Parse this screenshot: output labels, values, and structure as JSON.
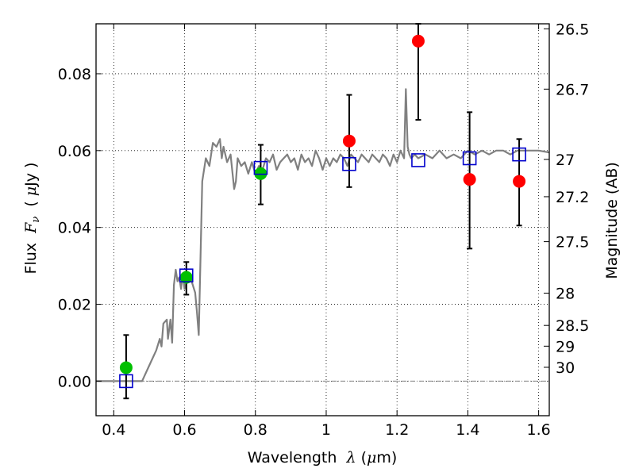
{
  "chart_data": {
    "type": "scatter",
    "xlabel": {
      "prefix": "Wavelength  ",
      "symbol": "λ",
      "units": " (",
      "unit_mu": "μ",
      "unit_rest": "m)"
    },
    "ylabel": {
      "prefix": "Flux  ",
      "symbol": "F",
      "subscript": "ν",
      "units": "  ( ",
      "unit_mu": "μ",
      "unit_rest": "Jy )"
    },
    "y2label": "Magnitude (AB)",
    "xlim": [
      0.35,
      1.63
    ],
    "ylim": [
      -0.009,
      0.093
    ],
    "grid": true,
    "x_ticks": [
      {
        "value": 0.4,
        "label": "0.4"
      },
      {
        "value": 0.6,
        "label": "0.6"
      },
      {
        "value": 0.8,
        "label": "0.8"
      },
      {
        "value": 1.0,
        "label": "1"
      },
      {
        "value": 1.2,
        "label": "1.2"
      },
      {
        "value": 1.4,
        "label": "1.4"
      },
      {
        "value": 1.6,
        "label": "1.6"
      }
    ],
    "y_ticks": [
      {
        "value": 0.0,
        "label": "0.00"
      },
      {
        "value": 0.02,
        "label": "0.02"
      },
      {
        "value": 0.04,
        "label": "0.04"
      },
      {
        "value": 0.06,
        "label": "0.06"
      },
      {
        "value": 0.08,
        "label": "0.08"
      }
    ],
    "y2_ticks": [
      {
        "label": "26.5",
        "flux": 0.0917
      },
      {
        "label": "26.7",
        "flux": 0.076
      },
      {
        "label": "27",
        "flux": 0.0577
      },
      {
        "label": "27.2",
        "flux": 0.048
      },
      {
        "label": "27.5",
        "flux": 0.0363
      },
      {
        "label": "28",
        "flux": 0.0229
      },
      {
        "label": "28.5",
        "flux": 0.0145
      },
      {
        "label": "29",
        "flux": 0.0091
      },
      {
        "label": "30",
        "flux": 0.0036
      }
    ],
    "zero_line": 0.0,
    "spectrum": {
      "color": "#808080",
      "x": [
        0.35,
        0.48,
        0.5,
        0.52,
        0.53,
        0.535,
        0.54,
        0.55,
        0.553,
        0.56,
        0.565,
        0.57,
        0.575,
        0.58,
        0.585,
        0.59,
        0.595,
        0.6,
        0.61,
        0.62,
        0.63,
        0.635,
        0.64,
        0.645,
        0.65,
        0.66,
        0.67,
        0.68,
        0.69,
        0.7,
        0.705,
        0.71,
        0.72,
        0.73,
        0.74,
        0.745,
        0.75,
        0.76,
        0.77,
        0.78,
        0.79,
        0.8,
        0.81,
        0.82,
        0.83,
        0.84,
        0.85,
        0.86,
        0.87,
        0.88,
        0.89,
        0.9,
        0.91,
        0.92,
        0.93,
        0.94,
        0.95,
        0.96,
        0.97,
        0.98,
        0.99,
        1.0,
        1.01,
        1.02,
        1.03,
        1.04,
        1.05,
        1.06,
        1.07,
        1.08,
        1.09,
        1.1,
        1.11,
        1.12,
        1.13,
        1.14,
        1.15,
        1.16,
        1.17,
        1.18,
        1.19,
        1.2,
        1.21,
        1.22,
        1.225,
        1.23,
        1.235,
        1.24,
        1.25,
        1.26,
        1.28,
        1.3,
        1.32,
        1.34,
        1.36,
        1.38,
        1.4,
        1.42,
        1.44,
        1.46,
        1.48,
        1.5,
        1.52,
        1.54,
        1.56,
        1.58,
        1.6,
        1.63
      ],
      "y": [
        0.0,
        0.0,
        0.004,
        0.008,
        0.011,
        0.009,
        0.015,
        0.016,
        0.011,
        0.016,
        0.01,
        0.025,
        0.029,
        0.026,
        0.027,
        0.024,
        0.028,
        0.024,
        0.027,
        0.026,
        0.023,
        0.018,
        0.012,
        0.032,
        0.052,
        0.058,
        0.056,
        0.062,
        0.061,
        0.063,
        0.058,
        0.061,
        0.057,
        0.059,
        0.05,
        0.052,
        0.058,
        0.056,
        0.057,
        0.054,
        0.057,
        0.054,
        0.056,
        0.055,
        0.058,
        0.057,
        0.059,
        0.055,
        0.057,
        0.058,
        0.059,
        0.057,
        0.058,
        0.055,
        0.059,
        0.057,
        0.058,
        0.056,
        0.06,
        0.058,
        0.055,
        0.058,
        0.056,
        0.058,
        0.057,
        0.059,
        0.058,
        0.056,
        0.059,
        0.058,
        0.057,
        0.059,
        0.058,
        0.057,
        0.059,
        0.058,
        0.057,
        0.059,
        0.058,
        0.056,
        0.059,
        0.057,
        0.06,
        0.058,
        0.076,
        0.061,
        0.059,
        0.058,
        0.059,
        0.058,
        0.059,
        0.058,
        0.06,
        0.058,
        0.059,
        0.058,
        0.06,
        0.059,
        0.06,
        0.059,
        0.06,
        0.06,
        0.059,
        0.06,
        0.06,
        0.06,
        0.06,
        0.0595
      ]
    },
    "errorbars": [
      {
        "x": 0.435,
        "low": -0.0045,
        "high": 0.012
      },
      {
        "x": 0.605,
        "low": 0.0225,
        "high": 0.031
      },
      {
        "x": 0.815,
        "low": 0.046,
        "high": 0.0615
      },
      {
        "x": 1.065,
        "low": 0.0505,
        "high": 0.0745
      },
      {
        "x": 1.26,
        "low": 0.068,
        "high": 0.093
      },
      {
        "x": 1.405,
        "low": 0.0345,
        "high": 0.07
      },
      {
        "x": 1.545,
        "low": 0.0405,
        "high": 0.063
      }
    ],
    "series": [
      {
        "marker": "circle",
        "color": "#00c000",
        "x": [
          0.435,
          0.605,
          0.815
        ],
        "values": [
          0.0035,
          0.027,
          0.054
        ]
      },
      {
        "marker": "circle",
        "color": "#ff0000",
        "x": [
          1.065,
          1.26,
          1.405,
          1.545
        ],
        "values": [
          0.0625,
          0.0885,
          0.0525,
          0.052
        ]
      },
      {
        "marker": "square-open",
        "color": "#0000cc",
        "x": [
          0.435,
          0.605,
          0.815,
          1.065,
          1.26,
          1.405,
          1.545
        ],
        "values": [
          0.0,
          0.0275,
          0.0555,
          0.0565,
          0.0575,
          0.058,
          0.059
        ]
      }
    ]
  }
}
